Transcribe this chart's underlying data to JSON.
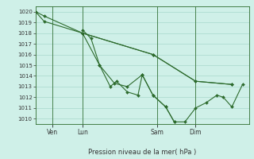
{
  "title": "Pression niveau de la mer( hPa )",
  "bg_color": "#cff0e8",
  "grid_color": "#a8d8cc",
  "line_color": "#2d6b2d",
  "ylim": [
    1009.5,
    1020.5
  ],
  "yticks": [
    1010,
    1011,
    1012,
    1013,
    1014,
    1015,
    1016,
    1017,
    1018,
    1019,
    1020
  ],
  "xlim": [
    0,
    100
  ],
  "xtick_positions": [
    8,
    22,
    57,
    75
  ],
  "xtick_labels": [
    "Ven",
    "Lun",
    "Sam",
    "Dim"
  ],
  "vline_positions": [
    8,
    22,
    57,
    75
  ],
  "series": [
    [
      0,
      1020.0,
      4,
      1019.6,
      22,
      1018.0,
      55,
      1016.0,
      75,
      1013.5,
      92,
      1013.2
    ],
    [
      0,
      1020.0,
      4,
      1019.1,
      22,
      1018.0,
      30,
      1015.0,
      37,
      1013.3,
      43,
      1013.0,
      50,
      1014.1,
      55,
      1012.2,
      61,
      1011.1,
      65,
      1009.7,
      70,
      1009.7,
      75,
      1011.0,
      80,
      1011.5,
      85,
      1012.2,
      88,
      1012.0,
      92,
      1011.1,
      97,
      1013.2
    ],
    [
      22,
      1018.3,
      26,
      1017.5,
      30,
      1015.0,
      35,
      1013.0,
      38,
      1013.5,
      43,
      1012.5,
      48,
      1012.2,
      50,
      1014.1,
      55,
      1012.2,
      61,
      1011.1,
      65,
      1009.7
    ],
    [
      22,
      1018.0,
      55,
      1016.0,
      75,
      1013.5,
      92,
      1013.2
    ]
  ]
}
